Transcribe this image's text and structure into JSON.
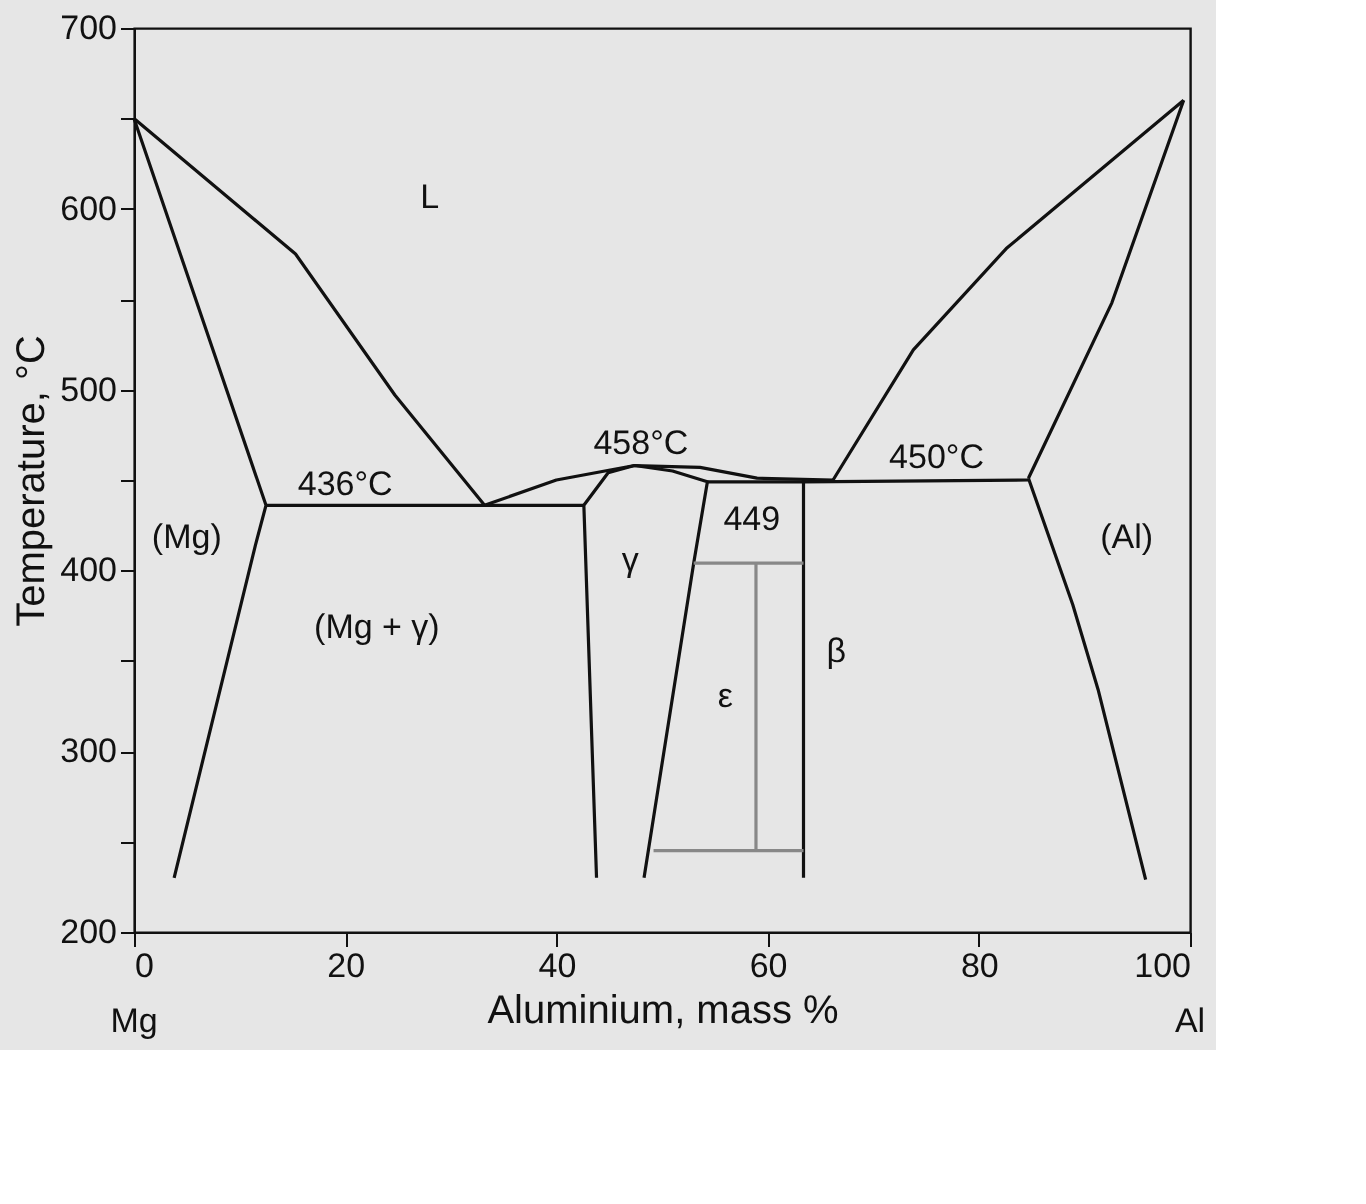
{
  "chart_data": {
    "type": "line",
    "xlabel": "Aluminium, mass %",
    "ylabel": "Temperature, °C",
    "xlim": [
      0,
      100
    ],
    "ylim": [
      200,
      700
    ],
    "xticks": [
      0,
      20,
      40,
      60,
      80,
      100
    ],
    "yticks": [
      200,
      {
        "value": 250,
        "label": null
      },
      300,
      {
        "value": 350,
        "label": null
      },
      400,
      {
        "value": 450,
        "label": null
      },
      500,
      {
        "value": 550,
        "label": null
      },
      600,
      {
        "value": 650,
        "label": null
      },
      700
    ],
    "grid": false,
    "line_style": "solid",
    "marker": "none",
    "series": [
      {
        "color": "#111111",
        "x": [
          0,
          15.3,
          24.7,
          33.2
        ],
        "values": [
          650,
          575,
          497,
          436
        ]
      },
      {
        "color": "#111111",
        "x": [
          0,
          12.5,
          11.5,
          3.8
        ],
        "values": [
          650,
          436,
          414,
          230
        ]
      },
      {
        "color": "#111111",
        "x": [
          12.5,
          42.6
        ],
        "values": [
          436,
          436
        ]
      },
      {
        "color": "#111111",
        "x": [
          43.8,
          42.6,
          44.9,
          47.4,
          51,
          54.3,
          53,
          48.3
        ],
        "values": [
          230,
          436,
          454,
          458,
          455,
          449,
          404,
          230
        ]
      },
      {
        "color": "#111111",
        "x": [
          33.2,
          40,
          47.4,
          53.6,
          59,
          66.2
        ],
        "values": [
          436,
          450,
          458,
          457,
          451,
          450
        ]
      },
      {
        "color": "#111111",
        "x": [
          54.3,
          63.4,
          84.7
        ],
        "values": [
          449,
          449,
          450
        ]
      },
      {
        "color": "#111111",
        "x": [
          63.4,
          63.4
        ],
        "values": [
          450,
          230
        ]
      },
      {
        "color": "#888888",
        "x": [
          53,
          63.4
        ],
        "values": [
          404,
          404
        ]
      },
      {
        "color": "#888888",
        "x": [
          58.9,
          58.9
        ],
        "values": [
          404,
          245
        ]
      },
      {
        "color": "#888888",
        "x": [
          49.2,
          63.4
        ],
        "values": [
          245,
          245
        ]
      },
      {
        "color": "#111111",
        "x": [
          66.2,
          73.8,
          82.6,
          99.4
        ],
        "values": [
          450,
          522,
          578,
          660
        ]
      },
      {
        "color": "#111111",
        "x": [
          99.4,
          92.6,
          84.7
        ],
        "values": [
          660,
          548,
          451
        ]
      },
      {
        "color": "#111111",
        "x": [
          84.7,
          88.9,
          91.3,
          95.8
        ],
        "values": [
          451,
          381,
          334,
          229
        ]
      }
    ],
    "annotations": [
      "L",
      "436°C",
      "458°C",
      "449",
      "450°C",
      "(Mg)",
      "(Al)",
      "(Mg + γ)",
      "γ",
      "ε",
      "β",
      "Mg",
      "Al"
    ]
  }
}
